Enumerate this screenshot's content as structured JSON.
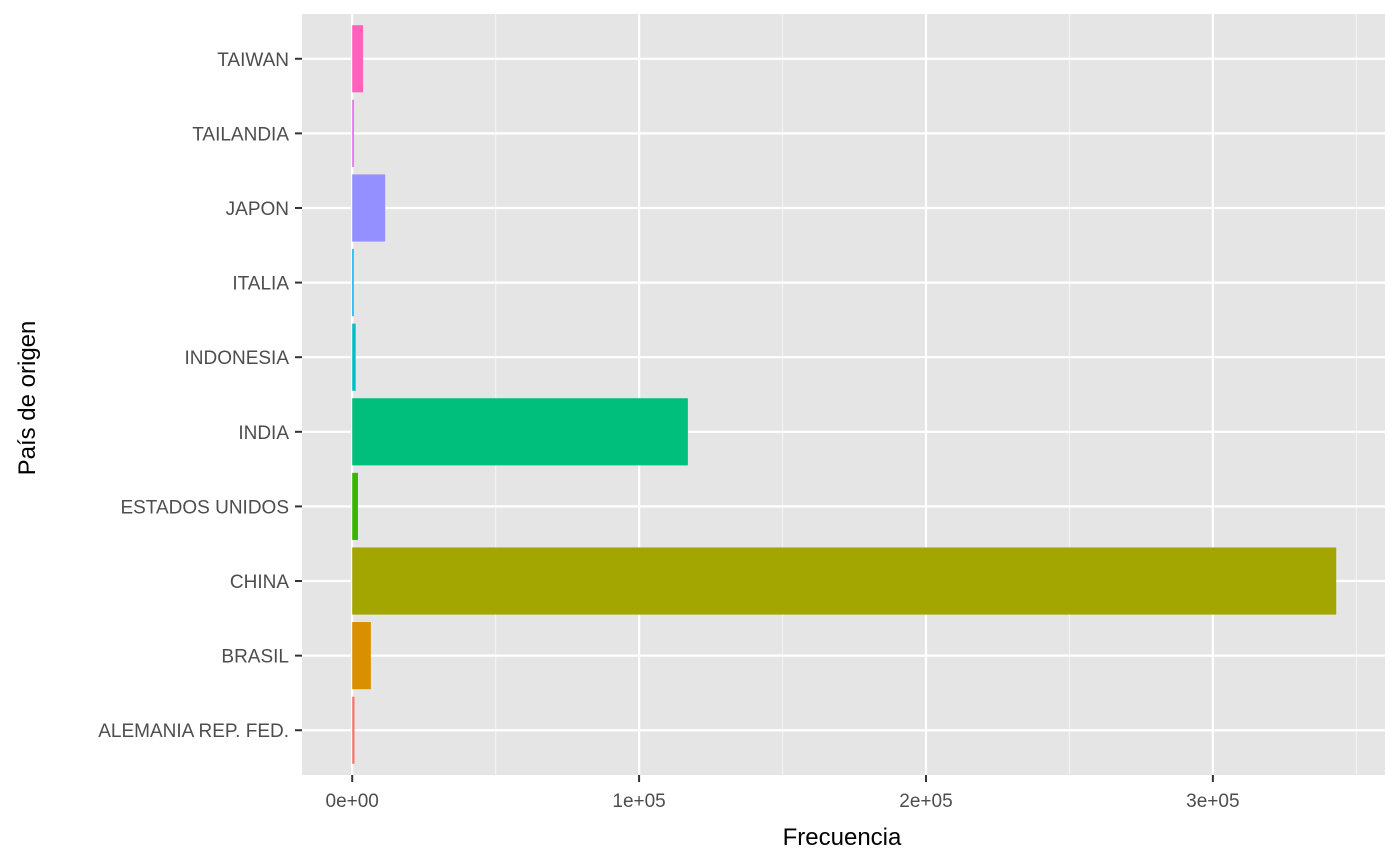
{
  "chart_data": {
    "type": "bar",
    "orientation": "horizontal",
    "xlabel": "Frecuencia",
    "ylabel": "País de origen",
    "categories": [
      "ALEMANIA REP. FED.",
      "BRASIL",
      "CHINA",
      "ESTADOS UNIDOS",
      "INDIA",
      "INDONESIA",
      "ITALIA",
      "JAPON",
      "TAILANDIA",
      "TAIWAN"
    ],
    "values": [
      800,
      6500,
      343000,
      2000,
      117000,
      1200,
      500,
      11500,
      600,
      3800
    ],
    "colors": [
      "#F8766D",
      "#D89000",
      "#A3A500",
      "#39B600",
      "#00BF7D",
      "#00BFC4",
      "#00B0F6",
      "#9590FF",
      "#E76BF3",
      "#FF62BC"
    ],
    "xlim": [
      -17500,
      360000
    ],
    "xticks": [
      0,
      100000,
      200000,
      300000
    ],
    "xtick_labels": [
      "0e+00",
      "1e+05",
      "2e+05",
      "3e+05"
    ],
    "panel_background": "#E5E5E5",
    "grid": true,
    "legend": "none"
  }
}
